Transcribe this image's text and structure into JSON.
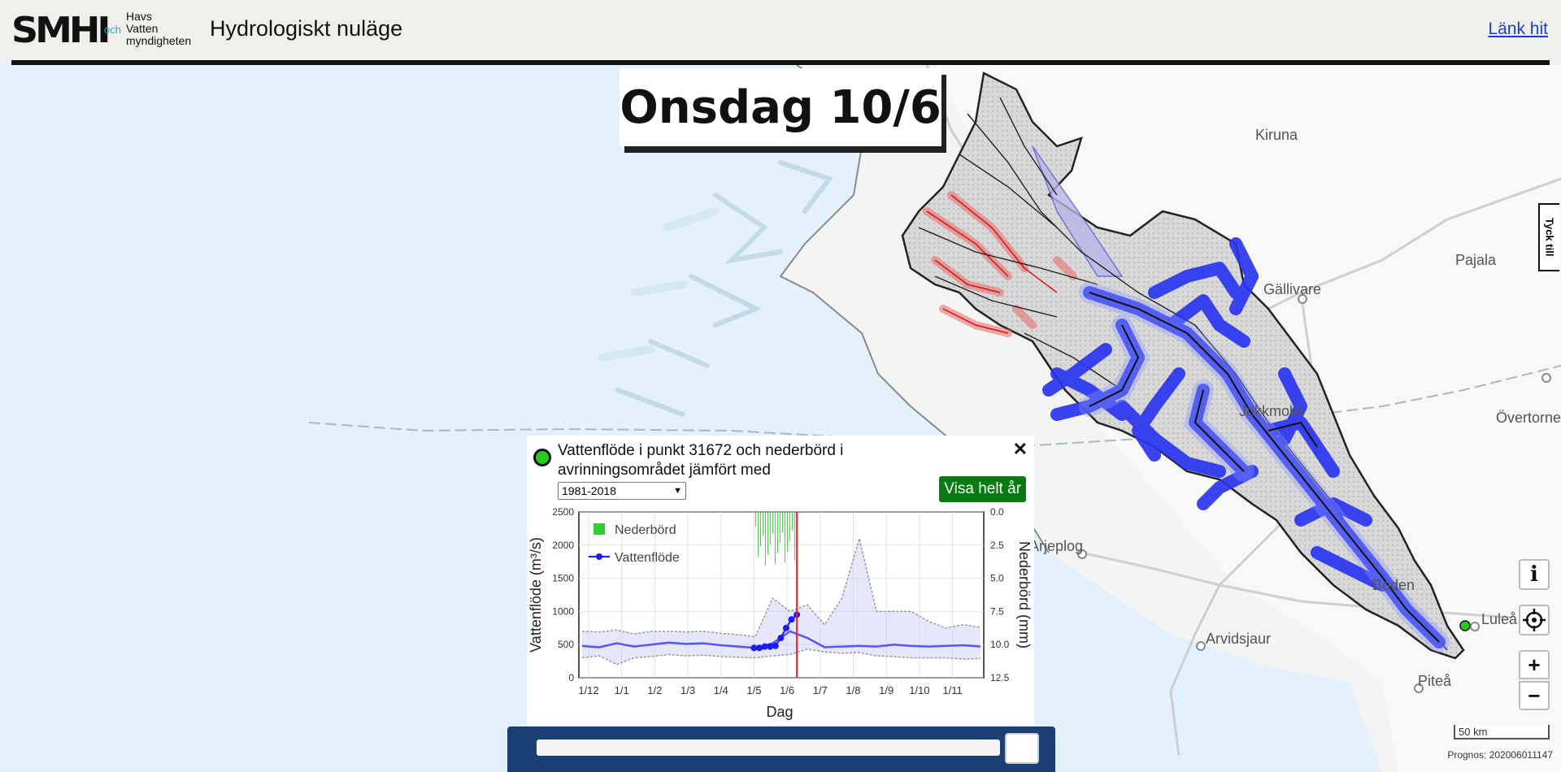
{
  "header": {
    "logo_smhi": "SMHI",
    "logo_och": "och",
    "logo_hav": [
      "Havs",
      "Vatten",
      "myndigheten"
    ],
    "title": "Hydrologiskt nuläge",
    "link": "Länk hit"
  },
  "map": {
    "day_label": "Onsdag 10/6",
    "feedback_tab": "Tyck till",
    "places": [
      "Kiruna",
      "Pajala",
      "Gällivare",
      "Övertorne",
      "Jokkmokk",
      "Arjeplog",
      "Arvidsjaur",
      "Boden",
      "Luleå",
      "Piteå"
    ],
    "controls": {
      "info": "i",
      "locate": "⌖",
      "zoom_in": "+",
      "zoom_out": "−"
    },
    "scale": "50 km",
    "prognos": "Prognos: 202006011147"
  },
  "popup": {
    "title": "Vattenflöde i punkt 31672 och nederbörd i avrinningsområdet jämfört med",
    "period": "1981-2018",
    "button": "Visa helt år",
    "close": "✕"
  },
  "chart_data": {
    "type": "line",
    "xlabel": "Dag",
    "ylabel": "Vattenflöde (m³/s)",
    "y2label": "Nederbörd (mm)",
    "ylim": [
      0,
      2500
    ],
    "y2lim": [
      0,
      12.5
    ],
    "y2_inverted": true,
    "xticks": [
      "1/12",
      "1/1",
      "1/2",
      "1/3",
      "1/4",
      "1/5",
      "1/6",
      "1/7",
      "1/8",
      "1/9",
      "1/10",
      "1/11"
    ],
    "yticks": [
      0,
      500,
      1000,
      1500,
      2000,
      2500
    ],
    "y2ticks": [
      "0.0",
      "2.5",
      "5.0",
      "7.5",
      "10.0",
      "12.5"
    ],
    "legend": [
      {
        "name": "Nederbörd",
        "color": "#33cc33"
      },
      {
        "name": "Vattenflöde",
        "color": "#1a1aff"
      }
    ],
    "today": "10/6",
    "grid": true,
    "series": [
      {
        "name": "Mean",
        "values": [
          480,
          460,
          520,
          470,
          500,
          530,
          510,
          520,
          490,
          470,
          450,
          520,
          700,
          600,
          460,
          470,
          480,
          470,
          500,
          480,
          470,
          480,
          490,
          470
        ]
      },
      {
        "name": "Max",
        "values": [
          700,
          690,
          720,
          660,
          700,
          700,
          690,
          700,
          670,
          650,
          620,
          1200,
          1000,
          1100,
          800,
          1200,
          2100,
          1000,
          1000,
          1000,
          850,
          750,
          800,
          760
        ]
      },
      {
        "name": "Min",
        "values": [
          300,
          330,
          200,
          300,
          320,
          350,
          330,
          340,
          320,
          310,
          300,
          330,
          350,
          430,
          390,
          370,
          380,
          330,
          320,
          300,
          300,
          300,
          280,
          290
        ]
      },
      {
        "name": "Vattenflöde",
        "x": [
          "1/5",
          "5/5",
          "10/5",
          "15/5",
          "20/5",
          "25/5",
          "30/5",
          "5/6",
          "10/6"
        ],
        "values": [
          450,
          450,
          470,
          470,
          480,
          600,
          750,
          880,
          950
        ]
      }
    ]
  }
}
